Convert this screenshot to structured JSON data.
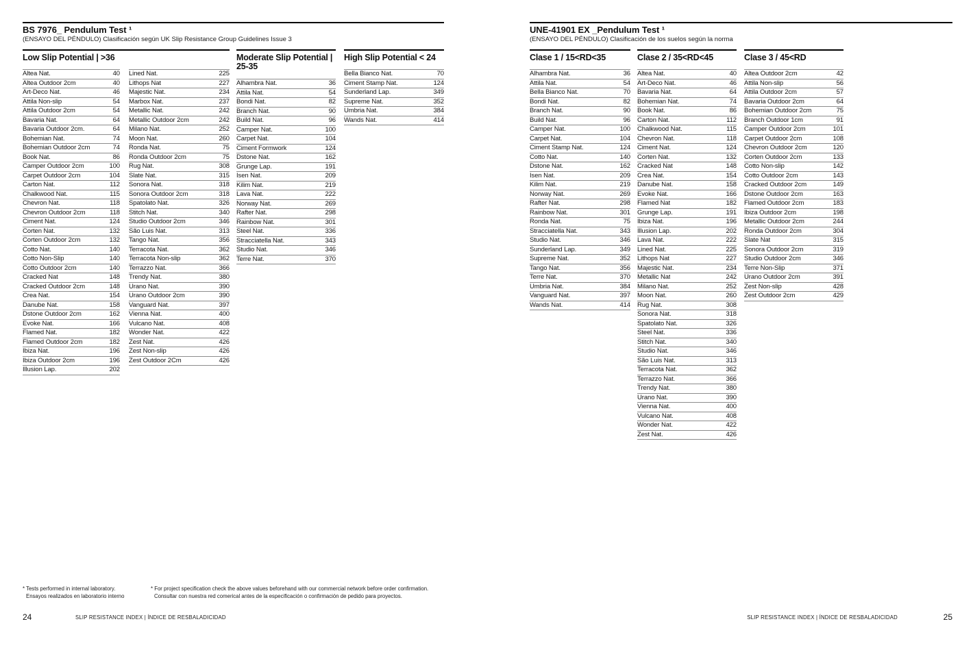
{
  "left_page": {
    "title": "BS 7976_ Pendulum Test ¹",
    "subtitle": "(ENSAYO DEL PÉNDULO) Clasificación según UK Slip Resistance Group Guidelines Issue 3",
    "low": {
      "title": "Low Slip Potential | >36",
      "rows_a": [
        [
          "Altea Nat.",
          40
        ],
        [
          "Altea Outdoor 2cm",
          40
        ],
        [
          "Art-Deco Nat.",
          46
        ],
        [
          "Attila Non-slip",
          54
        ],
        [
          "Attila Outdoor 2cm",
          54
        ],
        [
          "Bavaria Nat.",
          64
        ],
        [
          "Bavaria Outdoor 2cm.",
          64
        ],
        [
          "Bohemian Nat.",
          74
        ],
        [
          "Bohemian Outdoor 2cm",
          74
        ],
        [
          "Book Nat.",
          86
        ],
        [
          "Camper Outdoor 2cm",
          100
        ],
        [
          "Carpet Outdoor 2cm",
          104
        ],
        [
          "Carton Nat.",
          112
        ],
        [
          "Chalkwood Nat.",
          115
        ],
        [
          "Chevron Nat.",
          118
        ],
        [
          "Chevron Outdoor 2cm",
          118
        ],
        [
          "Ciment Nat.",
          124
        ],
        [
          "Corten Nat.",
          132
        ],
        [
          "Corten Outdoor 2cm",
          132
        ],
        [
          "Cotto Nat.",
          140
        ],
        [
          "Cotto Non-Slip",
          140
        ],
        [
          "Cotto Outdoor 2cm",
          140
        ],
        [
          "Cracked Nat",
          148
        ],
        [
          "Cracked Outdoor 2cm",
          148
        ],
        [
          "Crea Nat.",
          154
        ],
        [
          "Danube Nat.",
          158
        ],
        [
          "Dstone Outdoor 2cm",
          162
        ],
        [
          "Evoke Nat.",
          166
        ],
        [
          "Flamed Nat.",
          182
        ],
        [
          "Flamed Outdoor 2cm",
          182
        ],
        [
          "Ibiza Nat.",
          196
        ],
        [
          "Ibiza Outdoor 2cm",
          196
        ],
        [
          "Illusion Lap.",
          202
        ]
      ],
      "rows_b": [
        [
          "Lined Nat.",
          225
        ],
        [
          "Lithops Nat",
          227
        ],
        [
          "Majestic Nat.",
          234
        ],
        [
          "Marbox Nat.",
          237
        ],
        [
          "Metallic Nat.",
          242
        ],
        [
          "Metallic Outdoor 2cm",
          242
        ],
        [
          "Milano Nat.",
          252
        ],
        [
          "Moon Nat.",
          260
        ],
        [
          "Ronda Nat.",
          75
        ],
        [
          "Ronda Outdoor 2cm",
          75
        ],
        [
          "Rug Nat.",
          308
        ],
        [
          "Slate Nat.",
          315
        ],
        [
          "Sonora Nat.",
          318
        ],
        [
          "Sonora Outdoor 2cm",
          318
        ],
        [
          "Spatolato Nat.",
          326
        ],
        [
          "Stitch Nat.",
          340
        ],
        [
          "Studio Outdoor 2cm",
          346
        ],
        [
          "São Luis Nat.",
          313
        ],
        [
          "Tango Nat.",
          356
        ],
        [
          "Terracota Nat.",
          362
        ],
        [
          "Terracota Non-slip",
          362
        ],
        [
          "Terrazzo Nat.",
          366
        ],
        [
          "Trendy Nat.",
          380
        ],
        [
          "Urano Nat.",
          390
        ],
        [
          "Urano Outdoor 2cm",
          390
        ],
        [
          "Vanguard Nat.",
          397
        ],
        [
          "Vienna Nat.",
          400
        ],
        [
          "Vulcano Nat.",
          408
        ],
        [
          "Wonder Nat.",
          422
        ],
        [
          "Zest Nat.",
          426
        ],
        [
          "Zest Non-slip",
          426
        ],
        [
          "Zest Outdoor 2Cm",
          426
        ]
      ]
    },
    "moderate": {
      "title_line1": "Moderate Slip Potential |",
      "title_line2": "25-35",
      "rows": [
        [
          "Alhambra Nat.",
          36
        ],
        [
          "Attila Nat.",
          54
        ],
        [
          "Bondi Nat.",
          82
        ],
        [
          "Branch Nat.",
          90
        ],
        [
          "Build Nat.",
          96
        ],
        [
          "Camper Nat.",
          100
        ],
        [
          "Carpet Nat.",
          104
        ],
        [
          "Ciment Formwork",
          124
        ],
        [
          "Dstone Nat.",
          162
        ],
        [
          "Grunge Lap.",
          191
        ],
        [
          "Isen Nat.",
          209
        ],
        [
          "Kilim Nat.",
          219
        ],
        [
          "Lava Nat.",
          222
        ],
        [
          "Norway Nat.",
          269
        ],
        [
          "Rafter Nat.",
          298
        ],
        [
          "Rainbow Nat.",
          301
        ],
        [
          "Steel Nat.",
          336
        ],
        [
          "Stracciatella Nat.",
          343
        ],
        [
          "Studio Nat.",
          346
        ],
        [
          "Terre Nat.",
          370
        ]
      ]
    },
    "high": {
      "title": "High Slip Potential < 24",
      "rows": [
        [
          "Bella Bianco Nat.",
          70
        ],
        [
          "Ciment Stamp Nat.",
          124
        ],
        [
          "Sunderland Lap.",
          349
        ],
        [
          "Supreme Nat.",
          352
        ],
        [
          "Umbria Nat.",
          384
        ],
        [
          "Wands Nat.",
          414
        ]
      ]
    },
    "footnotes": {
      "a1": "* Tests performed in internal laboratory.",
      "a2": "Ensayos realizados en laboratorio interno",
      "b1": "* For project specification check the above values beforehand with our commercial network before order confirmation.",
      "b2": "Consultar con nuestra red comerical antes de la especificación o confirmación de pedido para proyectos."
    },
    "page_number": "24"
  },
  "right_page": {
    "title": "UNE-41901 EX _Pendulum Test ¹",
    "subtitle": "(ENSAYO DEL PÉNDULO) Clasificación de los suelos según la norma",
    "clase1": {
      "title": "Clase 1 / 15<RD<35",
      "rows": [
        [
          "Alhambra Nat.",
          36
        ],
        [
          "Attila Nat.",
          54
        ],
        [
          "Bella Bianco Nat.",
          70
        ],
        [
          "Bondi Nat.",
          82
        ],
        [
          "Branch Nat.",
          90
        ],
        [
          "Build Nat.",
          96
        ],
        [
          "Camper Nat.",
          100
        ],
        [
          "Carpet Nat.",
          104
        ],
        [
          "Ciment Stamp Nat.",
          124
        ],
        [
          "Cotto Nat.",
          140
        ],
        [
          "Dstone Nat.",
          162
        ],
        [
          "Isen Nat.",
          209
        ],
        [
          "Kilim Nat.",
          219
        ],
        [
          "Norway Nat.",
          269
        ],
        [
          "Rafter Nat.",
          298
        ],
        [
          "Rainbow Nat.",
          301
        ],
        [
          "Ronda Nat.",
          75
        ],
        [
          "Stracciatella Nat.",
          343
        ],
        [
          "Studio Nat.",
          346
        ],
        [
          "Sunderland Lap.",
          349
        ],
        [
          "Supreme Nat.",
          352
        ],
        [
          "Tango Nat.",
          356
        ],
        [
          "Terre Nat.",
          370
        ],
        [
          "Umbria Nat.",
          384
        ],
        [
          "Vanguard Nat.",
          397
        ],
        [
          "Wands Nat.",
          414
        ]
      ]
    },
    "clase2": {
      "title": "Clase 2 / 35<RD<45",
      "rows": [
        [
          "Altea Nat.",
          40
        ],
        [
          "Art-Deco Nat.",
          46
        ],
        [
          "Bavaria Nat.",
          64
        ],
        [
          "Bohemian Nat.",
          74
        ],
        [
          "Book Nat.",
          86
        ],
        [
          "Carton Nat.",
          112
        ],
        [
          "Chalkwood Nat.",
          115
        ],
        [
          "Chevron Nat.",
          118
        ],
        [
          "Ciment Nat.",
          124
        ],
        [
          "Corten Nat.",
          132
        ],
        [
          "Cracked Nat",
          148
        ],
        [
          "Crea Nat.",
          154
        ],
        [
          "Danube Nat.",
          158
        ],
        [
          "Evoke Nat.",
          166
        ],
        [
          "Flamed Nat",
          182
        ],
        [
          "Grunge Lap.",
          191
        ],
        [
          "Ibiza Nat.",
          196
        ],
        [
          "Illusion Lap.",
          202
        ],
        [
          "Lava Nat.",
          222
        ],
        [
          "Lined Nat.",
          225
        ],
        [
          "Lithops Nat",
          227
        ],
        [
          "Majestic Nat.",
          234
        ],
        [
          "Metallic Nat",
          242
        ],
        [
          "Milano Nat.",
          252
        ],
        [
          "Moon Nat.",
          260
        ],
        [
          "Rug Nat.",
          308
        ],
        [
          "Sonora Nat.",
          318
        ],
        [
          "Spatolato Nat.",
          326
        ],
        [
          "Steel Nat.",
          336
        ],
        [
          "Stitch Nat.",
          340
        ],
        [
          "Studio Nat.",
          346
        ],
        [
          "São Luis Nat.",
          313
        ],
        [
          "Terracota Nat.",
          362
        ],
        [
          "Terrazzo Nat.",
          366
        ],
        [
          "Trendy Nat.",
          380
        ],
        [
          "Urano Nat.",
          390
        ],
        [
          "Vienna Nat.",
          400
        ],
        [
          "Vulcano Nat.",
          408
        ],
        [
          "Wonder Nat.",
          422
        ],
        [
          "Zest Nat.",
          426
        ]
      ]
    },
    "clase3": {
      "title": "Clase 3 / 45<RD",
      "rows": [
        [
          "Altea Outdoor 2cm",
          42
        ],
        [
          "Attila Non-slip",
          56
        ],
        [
          "Attila Outdoor 2cm",
          57
        ],
        [
          "Bavaria Outdoor 2cm",
          64
        ],
        [
          "Bohemian Outdoor 2cm",
          75
        ],
        [
          "Branch Outdoor 1cm",
          91
        ],
        [
          "Camper Outdoor 2cm",
          101
        ],
        [
          "Carpet Outdoor 2cm",
          108
        ],
        [
          "Chevron Outdoor 2cm",
          120
        ],
        [
          "Corten Outdoor 2cm",
          133
        ],
        [
          "Cotto Non-slip",
          142
        ],
        [
          "Cotto Outdoor 2cm",
          143
        ],
        [
          "Cracked Outdoor 2cm",
          149
        ],
        [
          "Dstone Outdoor 2cm",
          163
        ],
        [
          "Flamed Outdoor 2cm",
          183
        ],
        [
          "Ibiza Outdoor 2cm",
          198
        ],
        [
          "Metallic Outdoor 2cm",
          244
        ],
        [
          "Ronda Outdoor 2cm",
          304
        ],
        [
          "Slate Nat",
          315
        ],
        [
          "Sonora Outdoor 2cm",
          319
        ],
        [
          "Studio Outdoor 2cm",
          346
        ],
        [
          "Terre Non-Slip",
          371
        ],
        [
          "Urano Outdoor 2cm",
          391
        ],
        [
          "Zest Non-slip",
          428
        ],
        [
          "Zest Outdoor 2cm",
          429
        ]
      ]
    },
    "page_number": "25"
  },
  "footer": {
    "label": "SLIP RESISTANCE INDEX | ÍNDICE DE RESBALADICIDAD"
  }
}
